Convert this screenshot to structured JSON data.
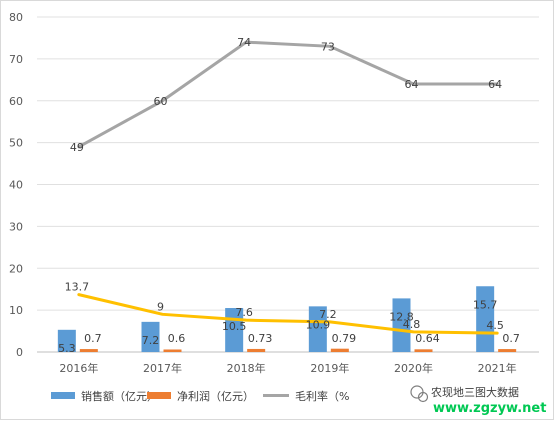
{
  "chart_data": {
    "type": "bar",
    "categories": [
      "2016年",
      "2017年",
      "2018年",
      "2019年",
      "2020年",
      "2021年"
    ],
    "ylim": [
      0,
      80
    ],
    "yticks": [
      0,
      10,
      20,
      30,
      40,
      50,
      60,
      70,
      80
    ],
    "grid": true,
    "legend_position": "bottom",
    "series": [
      {
        "name": "销售额（亿元）",
        "type": "bar",
        "color": "#5b9bd5",
        "values": [
          5.3,
          7.2,
          10.5,
          10.9,
          12.8,
          15.7
        ],
        "labels": [
          "5.3",
          "7.2",
          "10.5",
          "10.9",
          "12.8",
          "15.7"
        ]
      },
      {
        "name": "净利润（亿元）",
        "type": "bar",
        "color": "#ed7d31",
        "values": [
          0.7,
          0.6,
          0.73,
          0.79,
          0.64,
          0.7
        ],
        "labels": [
          "0.7",
          "0.6",
          "0.73",
          "0.79",
          "0.64",
          "0.7"
        ]
      },
      {
        "name": "毛利率（%",
        "type": "line",
        "color": "#a5a5a5",
        "values": [
          49,
          60,
          74,
          73,
          64,
          64
        ],
        "labels": [
          "49",
          "60",
          "74",
          "73",
          "64",
          "64"
        ]
      },
      {
        "type": "line",
        "color": "#ffc000",
        "values": [
          13.7,
          9,
          7.6,
          7.2,
          4.8,
          4.5
        ],
        "labels": [
          "13.7",
          "9",
          "7.6",
          "7.2",
          "4.8",
          "4.5"
        ]
      }
    ],
    "legend": [
      "销售额（亿元）",
      "净利润（亿元）",
      "毛利率（%"
    ]
  },
  "watermark": {
    "text": "农现地三图大数据",
    "url": "www.zgzyw.net",
    "icon": "wechat-icon"
  }
}
